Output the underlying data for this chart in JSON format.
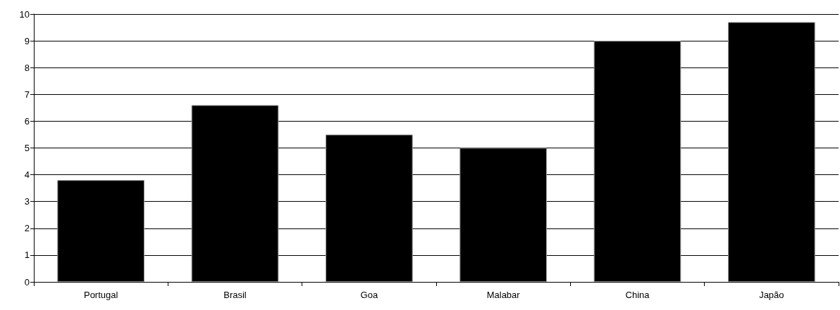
{
  "chart_data": {
    "type": "bar",
    "categories": [
      "Portugal",
      "Brasil",
      "Goa",
      "Malabar",
      "China",
      "Japão"
    ],
    "values": [
      3.8,
      6.6,
      5.5,
      5.0,
      9.0,
      9.7
    ],
    "color": "#000000",
    "ylim": [
      0,
      10
    ],
    "yticks": [
      0,
      1,
      2,
      3,
      4,
      5,
      6,
      7,
      8,
      9,
      10
    ],
    "grid": "y"
  }
}
